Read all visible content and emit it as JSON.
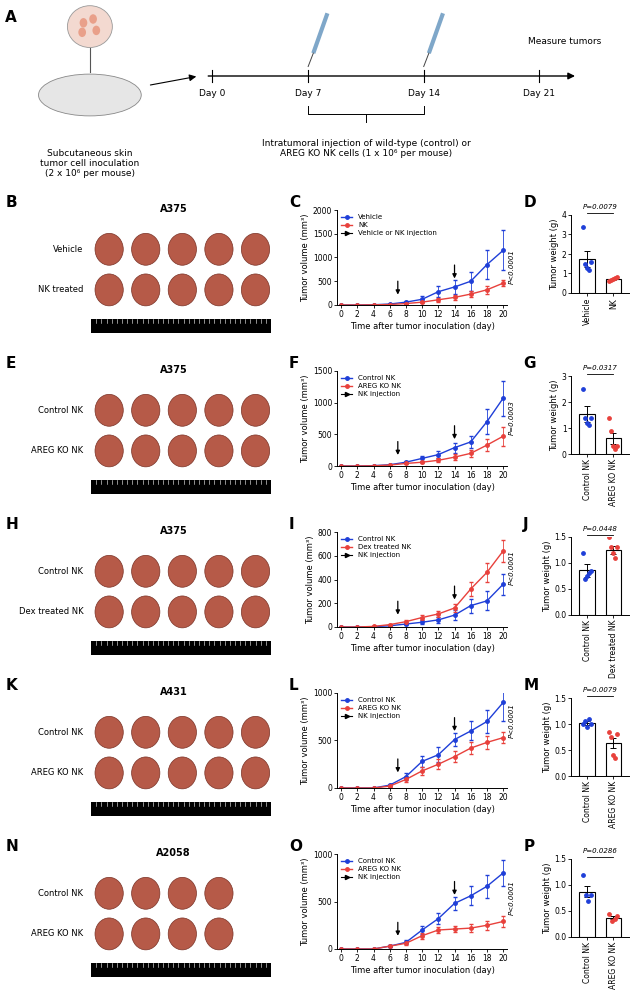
{
  "diagram": {
    "panel": "A",
    "inoculation": "Subcutaneous skin\ntumor cell inoculation\n(2 x 10⁶ per mouse)",
    "days": [
      "Day 0",
      "Day 7",
      "Day 14",
      "Day 21"
    ],
    "end": "Measure tumors",
    "injection": "Intratumoral injection of wild-type (control) or\nAREG KO NK cells (1 x 10⁶ per mouse)"
  },
  "photos": [
    {
      "panel": "B",
      "title": "A375",
      "rows": [
        "Vehicle",
        "NK treated"
      ],
      "tumors": [
        5,
        5
      ]
    },
    {
      "panel": "E",
      "title": "A375",
      "rows": [
        "Control NK",
        "AREG KO NK"
      ],
      "tumors": [
        5,
        5
      ]
    },
    {
      "panel": "H",
      "title": "A375",
      "rows": [
        "Control NK",
        "Dex treated NK"
      ],
      "tumors": [
        5,
        5
      ]
    },
    {
      "panel": "K",
      "title": "A431",
      "rows": [
        "Control NK",
        "AREG KO NK"
      ],
      "tumors": [
        5,
        5
      ]
    },
    {
      "panel": "N",
      "title": "A2058",
      "rows": [
        "Control NK",
        "AREG KO NK"
      ],
      "tumors": [
        4,
        4
      ]
    }
  ],
  "chart_data": [
    {
      "type": "line",
      "panel": "C",
      "xlabel": "Time after tumor inoculation (day)",
      "ylabel": "Tumor volume (mm³)",
      "x": [
        0,
        2,
        4,
        6,
        8,
        10,
        12,
        14,
        16,
        18,
        20
      ],
      "series": [
        {
          "name": "Vehicle",
          "color": "#1f3fd8",
          "marker": "o",
          "values": [
            0,
            0,
            5,
            20,
            60,
            120,
            280,
            380,
            500,
            850,
            1150
          ],
          "errors": [
            0,
            0,
            3,
            10,
            25,
            60,
            120,
            150,
            200,
            300,
            420
          ]
        },
        {
          "name": "NK",
          "color": "#e8413c",
          "marker": "o",
          "values": [
            0,
            0,
            3,
            10,
            30,
            60,
            110,
            160,
            230,
            320,
            460
          ],
          "errors": [
            0,
            0,
            2,
            5,
            12,
            25,
            40,
            60,
            70,
            90,
            60
          ]
        }
      ],
      "arrows": {
        "name": "Vehicle or NK injection",
        "x": [
          7,
          14
        ]
      },
      "xlim": [
        -0.5,
        20.5
      ],
      "xticks": [
        0,
        2,
        4,
        6,
        8,
        10,
        12,
        14,
        16,
        18,
        20
      ],
      "ylim": [
        0,
        2000
      ],
      "yticks": [
        0,
        500,
        1000,
        1500,
        2000
      ],
      "legend": "upper left",
      "annotations": [
        "P<0.0001"
      ]
    },
    {
      "type": "bar",
      "panel": "D",
      "ylabel": "Tumor weight (g)",
      "categories": [
        "Vehicle",
        "NK"
      ],
      "values": [
        1.75,
        0.7
      ],
      "errors": [
        0.4,
        0.04
      ],
      "points": [
        [
          3.4,
          1.5,
          1.3,
          1.2,
          1.6
        ],
        [
          0.6,
          0.65,
          0.7,
          0.75,
          0.8
        ]
      ],
      "colors": [
        "#1f3fd8",
        "#e8413c"
      ],
      "ylim": [
        0,
        4
      ],
      "yticks": [
        0,
        1,
        2,
        3,
        4
      ],
      "annotations": [
        "P=0.0079"
      ]
    },
    {
      "type": "line",
      "panel": "F",
      "xlabel": "Time after tumor inoculation (day)",
      "ylabel": "Tumor volume (mm³)",
      "x": [
        0,
        2,
        4,
        6,
        8,
        10,
        12,
        14,
        16,
        18,
        20
      ],
      "series": [
        {
          "name": "Control NK",
          "color": "#1f3fd8",
          "marker": "o",
          "values": [
            0,
            0,
            5,
            20,
            60,
            120,
            180,
            290,
            380,
            700,
            1070
          ],
          "errors": [
            0,
            0,
            3,
            8,
            20,
            40,
            60,
            80,
            100,
            200,
            280
          ]
        },
        {
          "name": "AREG KO NK",
          "color": "#e8413c",
          "marker": "o",
          "values": [
            0,
            0,
            3,
            15,
            40,
            60,
            90,
            140,
            200,
            330,
            470
          ],
          "errors": [
            0,
            0,
            2,
            6,
            15,
            20,
            30,
            50,
            60,
            100,
            150
          ]
        }
      ],
      "arrows": {
        "name": "NK injection",
        "x": [
          7,
          14
        ]
      },
      "xlim": [
        -0.5,
        20.5
      ],
      "xticks": [
        0,
        2,
        4,
        6,
        8,
        10,
        12,
        14,
        16,
        18,
        20
      ],
      "ylim": [
        0,
        1500
      ],
      "yticks": [
        0,
        500,
        1000,
        1500
      ],
      "legend": "upper left",
      "annotations": [
        "P=0.0003"
      ]
    },
    {
      "type": "bar",
      "panel": "G",
      "ylabel": "Tumor weight (g)",
      "categories": [
        "Control NK",
        "AREG KO NK"
      ],
      "values": [
        1.55,
        0.6
      ],
      "errors": [
        0.3,
        0.22
      ],
      "points": [
        [
          2.5,
          1.4,
          1.2,
          1.1,
          1.4
        ],
        [
          1.4,
          0.9,
          0.3,
          0.2,
          0.3
        ]
      ],
      "colors": [
        "#1f3fd8",
        "#e8413c"
      ],
      "ylim": [
        0,
        3
      ],
      "yticks": [
        0,
        1,
        2,
        3
      ],
      "annotations": [
        "P=0.0317"
      ]
    },
    {
      "type": "line",
      "panel": "I",
      "xlabel": "Time after tumor inoculation (day)",
      "ylabel": "Tumor volume (mm³)",
      "x": [
        0,
        2,
        4,
        6,
        8,
        10,
        12,
        14,
        16,
        18,
        20
      ],
      "series": [
        {
          "name": "Control NK",
          "color": "#1f3fd8",
          "marker": "o",
          "values": [
            0,
            0,
            3,
            10,
            25,
            40,
            60,
            100,
            180,
            220,
            360
          ],
          "errors": [
            0,
            0,
            2,
            5,
            10,
            15,
            25,
            40,
            60,
            80,
            90
          ]
        },
        {
          "name": "Dex treated NK",
          "color": "#e8413c",
          "marker": "o",
          "values": [
            0,
            0,
            5,
            20,
            45,
            80,
            110,
            160,
            320,
            460,
            640
          ],
          "errors": [
            0,
            0,
            3,
            8,
            15,
            20,
            25,
            35,
            60,
            80,
            90
          ]
        }
      ],
      "arrows": {
        "name": "NK injection",
        "x": [
          7,
          14
        ]
      },
      "xlim": [
        -0.5,
        20.5
      ],
      "xticks": [
        0,
        2,
        4,
        6,
        8,
        10,
        12,
        14,
        16,
        18,
        20
      ],
      "ylim": [
        0,
        800
      ],
      "yticks": [
        0,
        200,
        400,
        600,
        800
      ],
      "legend": "upper left",
      "annotations": [
        "P<0.0001"
      ]
    },
    {
      "type": "bar",
      "panel": "J",
      "ylabel": "Tumor weight (g)",
      "categories": [
        "Control NK",
        "Dex treated NK"
      ],
      "values": [
        0.86,
        1.25
      ],
      "errors": [
        0.12,
        0.07
      ],
      "points": [
        [
          1.2,
          0.7,
          0.75,
          0.8,
          0.85
        ],
        [
          1.5,
          1.3,
          1.2,
          1.1,
          1.3
        ]
      ],
      "colors": [
        "#1f3fd8",
        "#e8413c"
      ],
      "ylim": [
        0,
        1.5
      ],
      "yticks": [
        {
          "value": 0,
          "label": "0.0"
        },
        0.5,
        {
          "value": 1,
          "label": "1.0"
        },
        1.5
      ],
      "annotations": [
        "P=0.0448"
      ]
    },
    {
      "type": "line",
      "panel": "L",
      "xlabel": "Time after tumor inoculation (day)",
      "ylabel": "Tumor volume (mm³)",
      "x": [
        0,
        2,
        4,
        6,
        8,
        10,
        12,
        14,
        16,
        18,
        20
      ],
      "series": [
        {
          "name": "Control NK",
          "color": "#1f3fd8",
          "marker": "o",
          "values": [
            0,
            0,
            0,
            30,
            120,
            280,
            350,
            510,
            600,
            700,
            900
          ],
          "errors": [
            0,
            0,
            0,
            10,
            40,
            60,
            80,
            70,
            100,
            120,
            200
          ]
        },
        {
          "name": "AREG KO NK",
          "color": "#e8413c",
          "marker": "o",
          "values": [
            0,
            0,
            0,
            20,
            90,
            180,
            250,
            330,
            420,
            480,
            530
          ],
          "errors": [
            0,
            0,
            0,
            8,
            30,
            40,
            50,
            60,
            60,
            70,
            60
          ]
        }
      ],
      "arrows": {
        "name": "NK injection",
        "x": [
          7,
          14
        ]
      },
      "xlim": [
        -0.5,
        20.5
      ],
      "xticks": [
        0,
        2,
        4,
        6,
        8,
        10,
        12,
        14,
        16,
        18,
        20
      ],
      "ylim": [
        0,
        1000
      ],
      "yticks": [
        0,
        500,
        1000
      ],
      "legend": "upper left",
      "annotations": [
        "P<0.0001"
      ]
    },
    {
      "type": "bar",
      "panel": "M",
      "ylabel": "Tumor weight (g)",
      "categories": [
        "Control NK",
        "AREG KO NK"
      ],
      "values": [
        1.02,
        0.63
      ],
      "errors": [
        0.03,
        0.1
      ],
      "points": [
        [
          1.0,
          1.05,
          0.95,
          1.1,
          1.0
        ],
        [
          0.85,
          0.75,
          0.4,
          0.35,
          0.8
        ]
      ],
      "colors": [
        "#1f3fd8",
        "#e8413c"
      ],
      "ylim": [
        0,
        1.5
      ],
      "yticks": [
        {
          "value": 0,
          "label": "0.0"
        },
        0.5,
        {
          "value": 1,
          "label": "1.0"
        },
        1.5
      ],
      "annotations": [
        "P=0.0079"
      ]
    },
    {
      "type": "line",
      "panel": "O",
      "xlabel": "Time after tumor inoculation (day)",
      "ylabel": "Tumor volume (mm³)",
      "x": [
        0,
        2,
        4,
        6,
        8,
        10,
        12,
        14,
        16,
        18,
        20
      ],
      "series": [
        {
          "name": "Control NK",
          "color": "#1f3fd8",
          "marker": "o",
          "values": [
            0,
            0,
            0,
            30,
            70,
            200,
            320,
            480,
            560,
            660,
            800
          ],
          "errors": [
            0,
            0,
            0,
            10,
            20,
            40,
            60,
            70,
            100,
            120,
            140
          ]
        },
        {
          "name": "AREG KO NK",
          "color": "#e8413c",
          "marker": "o",
          "values": [
            0,
            0,
            0,
            30,
            60,
            140,
            200,
            210,
            220,
            250,
            290
          ],
          "errors": [
            0,
            0,
            0,
            10,
            15,
            30,
            30,
            30,
            40,
            50,
            60
          ]
        }
      ],
      "arrows": {
        "name": "NK injection",
        "x": [
          7,
          14
        ]
      },
      "xlim": [
        -0.5,
        20.5
      ],
      "xticks": [
        0,
        2,
        4,
        6,
        8,
        10,
        12,
        14,
        16,
        18,
        20
      ],
      "ylim": [
        0,
        1000
      ],
      "yticks": [
        0,
        500,
        1000
      ],
      "legend": "upper left",
      "annotations": [
        "P<0.0001"
      ]
    },
    {
      "type": "bar",
      "panel": "P",
      "ylabel": "Tumor weight (g)",
      "categories": [
        "Control NK",
        "AREG KO NK"
      ],
      "values": [
        0.875,
        0.375
      ],
      "errors": [
        0.11,
        0.03
      ],
      "points": [
        [
          1.2,
          0.8,
          0.7,
          0.8
        ],
        [
          0.45,
          0.3,
          0.35,
          0.4
        ]
      ],
      "colors": [
        "#1f3fd8",
        "#e8413c"
      ],
      "ylim": [
        0,
        1.5
      ],
      "yticks": [
        {
          "value": 0,
          "label": "0.0"
        },
        0.5,
        {
          "value": 1,
          "label": "1.0"
        },
        1.5
      ],
      "annotations": [
        "P=0.0286"
      ]
    }
  ]
}
